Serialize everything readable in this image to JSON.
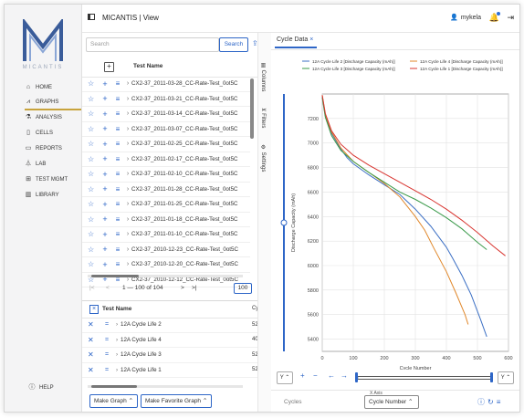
{
  "app": {
    "brand": "MICANTIS",
    "title": "MICANTIS | View",
    "user": "mykela"
  },
  "nav": {
    "items": [
      {
        "label": "HOME",
        "icon": "home-icon"
      },
      {
        "label": "GRAPHS",
        "icon": "graph-icon"
      },
      {
        "label": "ANALYSIS",
        "icon": "analysis-icon"
      },
      {
        "label": "CELLS",
        "icon": "cell-icon"
      },
      {
        "label": "REPORTS",
        "icon": "report-icon"
      },
      {
        "label": "LAB",
        "icon": "flask-icon"
      },
      {
        "label": "TEST MGMT",
        "icon": "test-icon"
      },
      {
        "label": "LIBRARY",
        "icon": "library-icon"
      }
    ],
    "help": "HELP"
  },
  "search": {
    "placeholder": "Search",
    "button": "Search"
  },
  "test_list": {
    "header": "Test Name",
    "rows": [
      "CX2-37_2011-03-28_CC-Rate-Test_0ot5C",
      "CX2-37_2011-03-21_CC-Rate-Test_0ot5C",
      "CX2-37_2011-03-14_CC-Rate-Test_0ot5C",
      "CX2-37_2011-03-07_CC-Rate-Test_0ot5C",
      "CX2-37_2011-02-25_CC-Rate-Test_0ot5C",
      "CX2-37_2011-02-17_CC-Rate-Test_0ot5C",
      "CX2-37_2011-02-10_CC-Rate-Test_0ot5C",
      "CX2-37_2011-01-28_CC-Rate-Test_0ot5C",
      "CX2-37_2011-01-25_CC-Rate-Test_0ot5C",
      "CX2-37_2011-01-18_CC-Rate-Test_0ot5C",
      "CX2-37_2011-01-10_CC-Rate-Test_0ot5C",
      "CX2-37_2010-12-23_CC-Rate-Test_0ot5C",
      "CX2-37_2010-12-20_CC-Rate-Test_0ot5C",
      "CX2-37_2010-12-12_CC-Rate-Test_0ot5C"
    ]
  },
  "pager": {
    "first": "|<",
    "prev": "<",
    "range": "1 — 100 of 104",
    "next": ">",
    "last": ">|",
    "size": "100"
  },
  "selected": {
    "header": "Test Name",
    "col2": "Cy",
    "rows": [
      {
        "name": "12A Cycle Life 2",
        "c": "52"
      },
      {
        "name": "12A Cycle Life 4",
        "c": "40"
      },
      {
        "name": "12A Cycle Life 3",
        "c": "52"
      },
      {
        "name": "12A Cycle Life 1",
        "c": "52"
      }
    ]
  },
  "buttons": {
    "make_graph": "Make Graph",
    "make_favorite": "Make Favorite Graph"
  },
  "side_tabs": {
    "columns": "Columns",
    "filters": "Filters",
    "settings": "Settings"
  },
  "chart_tab": {
    "label": "Cycle Data",
    "close": "×"
  },
  "controls": {
    "y_left": "Y",
    "y_right": "Y",
    "zoom_in": "+",
    "zoom_out": "−",
    "pan_left": "←",
    "pan_right": "→"
  },
  "bottom": {
    "cycles": "Cycles",
    "x_axis_label": "X Axis",
    "x_axis_value": "Cycle Number"
  },
  "colors": {
    "accent": "#2e66c7",
    "gold": "#c8a33c",
    "blue": "#3b6fc4",
    "orange": "#e0872a",
    "green": "#3a9a4a",
    "red": "#d8342f"
  },
  "chart_data": {
    "type": "line",
    "xlabel": "Cycle Number",
    "ylabel": "Discharge Capacity (mAh)",
    "xlim": [
      0,
      600
    ],
    "ylim": [
      5300,
      7400
    ],
    "xticks": [
      0,
      100,
      200,
      300,
      400,
      500,
      600
    ],
    "yticks": [
      5400,
      5600,
      5800,
      6000,
      6200,
      6400,
      6600,
      6800,
      7000,
      7200
    ],
    "legend_position": "top",
    "series": [
      {
        "name": "12A Cycle Life 2 [Discharge Capacity (mAh)]",
        "color": "#3b6fc4",
        "x": [
          0,
          10,
          30,
          60,
          80,
          100,
          150,
          200,
          250,
          300,
          350,
          400,
          420,
          450,
          480,
          510,
          530
        ],
        "y": [
          7380,
          7220,
          7080,
          6950,
          6880,
          6830,
          6740,
          6660,
          6580,
          6460,
          6320,
          6150,
          6060,
          5920,
          5760,
          5560,
          5420
        ]
      },
      {
        "name": "12A Cycle Life 4 [Discharge Capacity (mAh)]",
        "color": "#e0872a",
        "x": [
          0,
          10,
          30,
          60,
          100,
          150,
          200,
          250,
          300,
          330,
          360,
          400,
          430,
          460,
          470
        ],
        "y": [
          7390,
          7230,
          7090,
          6960,
          6850,
          6760,
          6670,
          6560,
          6400,
          6290,
          6140,
          5950,
          5780,
          5600,
          5520
        ]
      },
      {
        "name": "12A Cycle Life 3 [Discharge Capacity (mAh)]",
        "color": "#3a9a4a",
        "x": [
          0,
          10,
          30,
          60,
          100,
          150,
          200,
          250,
          300,
          350,
          400,
          450,
          500,
          530
        ],
        "y": [
          7370,
          7210,
          7060,
          6940,
          6850,
          6760,
          6680,
          6600,
          6540,
          6470,
          6390,
          6300,
          6190,
          6130
        ]
      },
      {
        "name": "12A Cycle Life 1 [Discharge Capacity (mAh)]",
        "color": "#d8342f",
        "x": [
          0,
          10,
          30,
          60,
          100,
          150,
          200,
          250,
          300,
          350,
          400,
          450,
          500,
          550,
          590
        ],
        "y": [
          7390,
          7240,
          7100,
          6990,
          6900,
          6820,
          6750,
          6680,
          6610,
          6540,
          6460,
          6370,
          6270,
          6160,
          6080
        ]
      }
    ]
  }
}
